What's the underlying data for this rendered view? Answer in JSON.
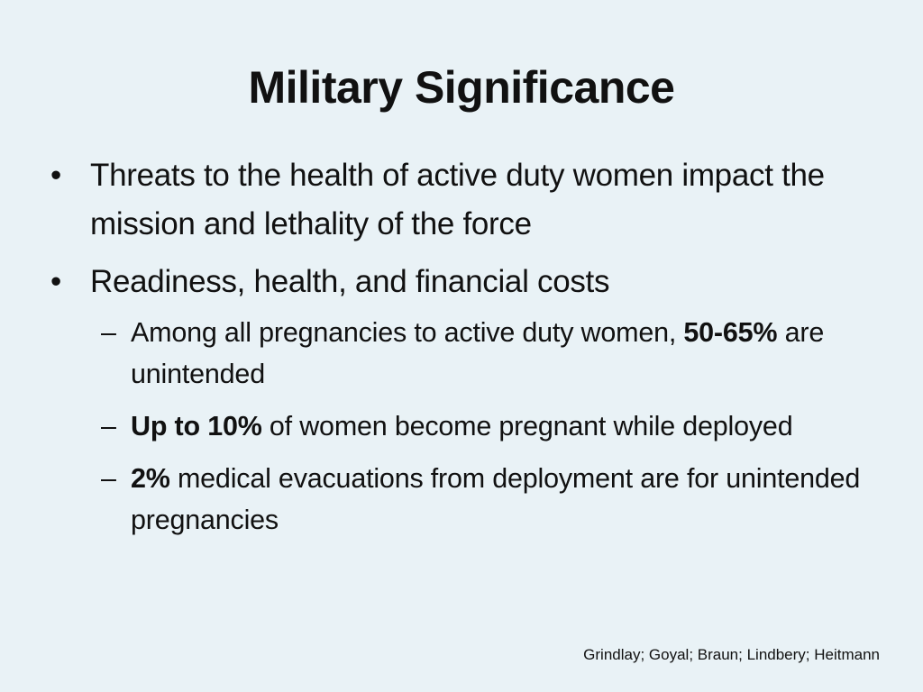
{
  "slide": {
    "title": "Military Significance",
    "bullets": [
      {
        "marker": "•",
        "text": "Threats to the health of active duty women impact the mission and lethality of the force"
      },
      {
        "marker": "•",
        "text": "Readiness, health, and financial costs",
        "subbullets": [
          {
            "marker": "–",
            "before": "Among all pregnancies to active duty women, ",
            "bold": "50-65%",
            "after": " are unintended"
          },
          {
            "marker": "–",
            "before": "",
            "bold": "Up to 10%",
            "after": " of women become pregnant while deployed"
          },
          {
            "marker": "–",
            "before": "",
            "bold": "2%",
            "after": " medical evacuations from deployment are for unintended pregnancies"
          }
        ]
      }
    ],
    "citation": "Grindlay; Goyal; Braun; Lindbery; Heitmann"
  }
}
